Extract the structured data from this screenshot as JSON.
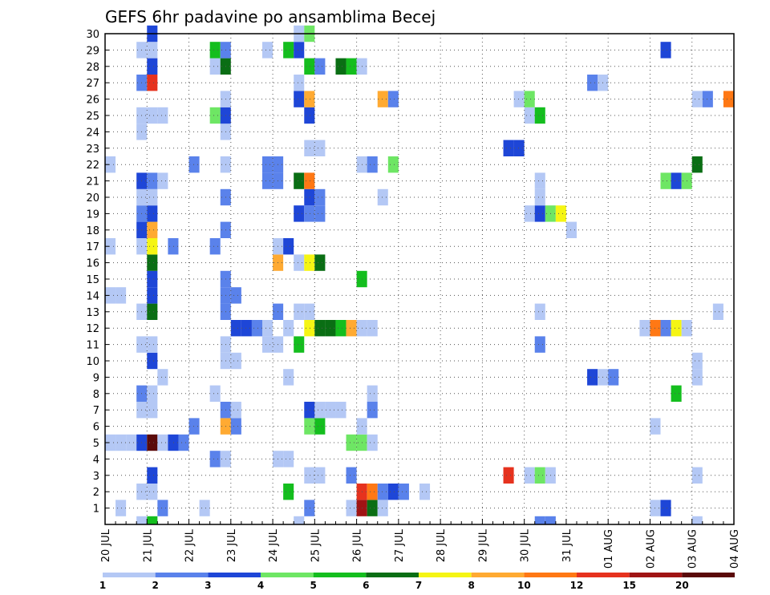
{
  "chart_data": {
    "type": "heatmap",
    "title": "GEFS 6hr padavine po ansamblima Becej",
    "xlabel": "",
    "ylabel": "",
    "x_ticks": [
      "20 JUL",
      "21 JUL",
      "22 JUL",
      "23 JUL",
      "24 JUL",
      "25 JUL",
      "26 JUL",
      "27 JUL",
      "28 JUL",
      "29 JUL",
      "30 JUL",
      "31 JUL",
      "01 AUG",
      "02 AUG",
      "03 AUG",
      "04 AUG"
    ],
    "y_ticks": [
      "1",
      "2",
      "3",
      "4",
      "5",
      "6",
      "7",
      "8",
      "9",
      "10",
      "11",
      "12",
      "13",
      "14",
      "15",
      "16",
      "17",
      "18",
      "19",
      "20",
      "21",
      "22",
      "23",
      "24",
      "25",
      "26",
      "27",
      "28",
      "29",
      "30"
    ],
    "xlim_steps": [
      0,
      60
    ],
    "steps_per_day": 4,
    "ylim": [
      0,
      30
    ],
    "grid": true,
    "colorbar": {
      "ticks": [
        "1",
        "2",
        "3",
        "4",
        "5",
        "6",
        "7",
        "8",
        "10",
        "12",
        "15",
        "20"
      ],
      "colors": [
        "#b4c8f5",
        "#5a82eb",
        "#1e46d7",
        "#6ee664",
        "#14be1e",
        "#0a6e14",
        "#f5f514",
        "#ffaa32",
        "#ff7814",
        "#e6321e",
        "#a01414",
        "#5a0a0a"
      ]
    },
    "cells": [
      [
        1,
        1,
        1
      ],
      [
        5,
        1,
        2
      ],
      [
        9,
        1,
        1
      ],
      [
        19,
        1,
        2
      ],
      [
        23,
        1,
        1
      ],
      [
        24,
        1,
        11
      ],
      [
        25,
        1,
        6
      ],
      [
        26,
        1,
        1
      ],
      [
        52,
        1,
        1
      ],
      [
        53,
        1,
        3
      ],
      [
        3,
        2,
        1
      ],
      [
        4,
        2,
        1
      ],
      [
        17,
        2,
        5
      ],
      [
        24,
        2,
        10
      ],
      [
        25,
        2,
        9
      ],
      [
        26,
        2,
        2
      ],
      [
        27,
        2,
        3
      ],
      [
        28,
        2,
        2
      ],
      [
        30,
        2,
        1
      ],
      [
        4,
        3,
        3
      ],
      [
        19,
        3,
        1
      ],
      [
        20,
        3,
        1
      ],
      [
        23,
        3,
        2
      ],
      [
        38,
        3,
        10
      ],
      [
        40,
        3,
        1
      ],
      [
        41,
        3,
        4
      ],
      [
        42,
        3,
        1
      ],
      [
        56,
        3,
        1
      ],
      [
        10,
        4,
        2
      ],
      [
        11,
        4,
        1
      ],
      [
        16,
        4,
        1
      ],
      [
        17,
        4,
        1
      ],
      [
        0,
        5,
        1
      ],
      [
        1,
        5,
        1
      ],
      [
        2,
        5,
        1
      ],
      [
        3,
        5,
        3
      ],
      [
        4,
        5,
        12
      ],
      [
        5,
        5,
        1
      ],
      [
        6,
        5,
        3
      ],
      [
        7,
        5,
        2
      ],
      [
        23,
        5,
        4
      ],
      [
        24,
        5,
        4
      ],
      [
        25,
        5,
        1
      ],
      [
        8,
        6,
        2
      ],
      [
        11,
        6,
        8
      ],
      [
        12,
        6,
        2
      ],
      [
        19,
        6,
        4
      ],
      [
        20,
        6,
        5
      ],
      [
        24,
        6,
        1
      ],
      [
        52,
        6,
        1
      ],
      [
        3,
        7,
        1
      ],
      [
        4,
        7,
        1
      ],
      [
        11,
        7,
        2
      ],
      [
        12,
        7,
        1
      ],
      [
        19,
        7,
        3
      ],
      [
        20,
        7,
        1
      ],
      [
        21,
        7,
        1
      ],
      [
        22,
        7,
        1
      ],
      [
        25,
        7,
        2
      ],
      [
        3,
        8,
        2
      ],
      [
        4,
        8,
        1
      ],
      [
        10,
        8,
        1
      ],
      [
        25,
        8,
        1
      ],
      [
        54,
        8,
        5
      ],
      [
        5,
        9,
        1
      ],
      [
        17,
        9,
        1
      ],
      [
        46,
        9,
        3
      ],
      [
        47,
        9,
        1
      ],
      [
        48,
        9,
        2
      ],
      [
        56,
        9,
        1
      ],
      [
        4,
        10,
        3
      ],
      [
        11,
        10,
        1
      ],
      [
        12,
        10,
        1
      ],
      [
        56,
        10,
        1
      ],
      [
        60,
        10,
        4
      ],
      [
        3,
        11,
        1
      ],
      [
        4,
        11,
        1
      ],
      [
        11,
        11,
        1
      ],
      [
        15,
        11,
        1
      ],
      [
        16,
        11,
        1
      ],
      [
        18,
        11,
        5
      ],
      [
        41,
        11,
        2
      ],
      [
        12,
        12,
        3
      ],
      [
        13,
        12,
        3
      ],
      [
        14,
        12,
        2
      ],
      [
        15,
        12,
        1
      ],
      [
        17,
        12,
        1
      ],
      [
        19,
        12,
        7
      ],
      [
        20,
        12,
        6
      ],
      [
        21,
        12,
        6
      ],
      [
        22,
        12,
        5
      ],
      [
        23,
        12,
        8
      ],
      [
        24,
        12,
        1
      ],
      [
        25,
        12,
        1
      ],
      [
        51,
        12,
        1
      ],
      [
        52,
        12,
        9
      ],
      [
        53,
        12,
        2
      ],
      [
        54,
        12,
        7
      ],
      [
        55,
        12,
        1
      ],
      [
        3,
        13,
        1
      ],
      [
        4,
        13,
        6
      ],
      [
        11,
        13,
        2
      ],
      [
        16,
        13,
        2
      ],
      [
        18,
        13,
        1
      ],
      [
        19,
        13,
        1
      ],
      [
        41,
        13,
        1
      ],
      [
        58,
        13,
        1
      ],
      [
        0,
        14,
        1
      ],
      [
        1,
        14,
        1
      ],
      [
        4,
        14,
        3
      ],
      [
        11,
        14,
        2
      ],
      [
        12,
        14,
        2
      ],
      [
        4,
        15,
        3
      ],
      [
        11,
        15,
        2
      ],
      [
        24,
        15,
        5
      ],
      [
        4,
        16,
        6
      ],
      [
        16,
        16,
        8
      ],
      [
        18,
        16,
        1
      ],
      [
        19,
        16,
        7
      ],
      [
        20,
        16,
        6
      ],
      [
        0,
        17,
        1
      ],
      [
        3,
        17,
        1
      ],
      [
        4,
        17,
        7
      ],
      [
        6,
        17,
        2
      ],
      [
        10,
        17,
        2
      ],
      [
        16,
        17,
        1
      ],
      [
        17,
        17,
        3
      ],
      [
        3,
        18,
        3
      ],
      [
        4,
        18,
        8
      ],
      [
        11,
        18,
        2
      ],
      [
        44,
        18,
        1
      ],
      [
        3,
        19,
        2
      ],
      [
        4,
        19,
        3
      ],
      [
        18,
        19,
        3
      ],
      [
        19,
        19,
        2
      ],
      [
        20,
        19,
        2
      ],
      [
        40,
        19,
        1
      ],
      [
        41,
        19,
        3
      ],
      [
        42,
        19,
        4
      ],
      [
        43,
        19,
        7
      ],
      [
        3,
        20,
        1
      ],
      [
        4,
        20,
        1
      ],
      [
        11,
        20,
        2
      ],
      [
        19,
        20,
        3
      ],
      [
        20,
        20,
        2
      ],
      [
        26,
        20,
        1
      ],
      [
        41,
        20,
        1
      ],
      [
        3,
        21,
        3
      ],
      [
        4,
        21,
        2
      ],
      [
        5,
        21,
        1
      ],
      [
        15,
        21,
        2
      ],
      [
        16,
        21,
        2
      ],
      [
        18,
        21,
        6
      ],
      [
        19,
        21,
        9
      ],
      [
        41,
        21,
        1
      ],
      [
        53,
        21,
        4
      ],
      [
        54,
        21,
        3
      ],
      [
        55,
        21,
        4
      ],
      [
        0,
        22,
        1
      ],
      [
        8,
        22,
        2
      ],
      [
        11,
        22,
        1
      ],
      [
        15,
        22,
        2
      ],
      [
        16,
        22,
        2
      ],
      [
        24,
        22,
        1
      ],
      [
        25,
        22,
        2
      ],
      [
        27,
        22,
        4
      ],
      [
        56,
        22,
        6
      ],
      [
        60,
        22,
        3
      ],
      [
        19,
        23,
        1
      ],
      [
        20,
        23,
        1
      ],
      [
        38,
        23,
        3
      ],
      [
        39,
        23,
        3
      ],
      [
        3,
        24,
        1
      ],
      [
        11,
        24,
        1
      ],
      [
        3,
        25,
        1
      ],
      [
        4,
        25,
        1
      ],
      [
        5,
        25,
        1
      ],
      [
        10,
        25,
        4
      ],
      [
        11,
        25,
        3
      ],
      [
        19,
        25,
        3
      ],
      [
        40,
        25,
        1
      ],
      [
        41,
        25,
        5
      ],
      [
        11,
        26,
        1
      ],
      [
        18,
        26,
        3
      ],
      [
        19,
        26,
        8
      ],
      [
        26,
        26,
        8
      ],
      [
        27,
        26,
        2
      ],
      [
        39,
        26,
        1
      ],
      [
        40,
        26,
        4
      ],
      [
        56,
        26,
        1
      ],
      [
        57,
        26,
        2
      ],
      [
        59,
        26,
        9
      ],
      [
        3,
        27,
        2
      ],
      [
        4,
        27,
        10
      ],
      [
        18,
        27,
        1
      ],
      [
        46,
        27,
        2
      ],
      [
        47,
        27,
        1
      ],
      [
        4,
        28,
        3
      ],
      [
        10,
        28,
        1
      ],
      [
        11,
        28,
        6
      ],
      [
        19,
        28,
        5
      ],
      [
        20,
        28,
        2
      ],
      [
        22,
        28,
        6
      ],
      [
        23,
        28,
        5
      ],
      [
        24,
        28,
        1
      ],
      [
        3,
        29,
        1
      ],
      [
        4,
        29,
        1
      ],
      [
        10,
        29,
        5
      ],
      [
        11,
        29,
        2
      ],
      [
        15,
        29,
        1
      ],
      [
        17,
        29,
        5
      ],
      [
        18,
        29,
        3
      ],
      [
        53,
        29,
        3
      ],
      [
        4,
        30,
        3
      ],
      [
        18,
        30,
        1
      ],
      [
        19,
        30,
        4
      ]
    ],
    "bottom_partial_cells": [
      [
        3,
        1
      ],
      [
        4,
        5
      ],
      [
        18,
        1
      ],
      [
        41,
        2
      ],
      [
        42,
        2
      ],
      [
        56,
        1
      ]
    ]
  }
}
